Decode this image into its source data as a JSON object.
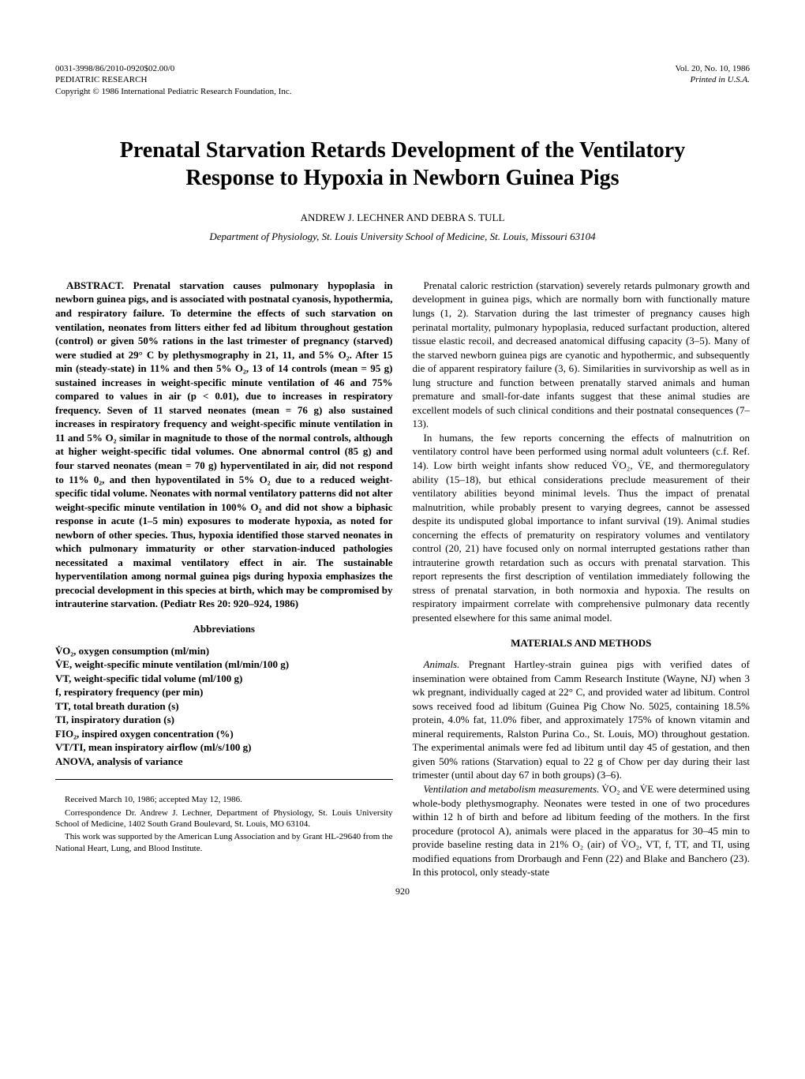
{
  "header": {
    "left_line1": "0031-3998/86/2010-0920$02.00/0",
    "left_line2": "PEDIATRIC RESEARCH",
    "left_line3": "Copyright © 1986 International Pediatric Research Foundation, Inc.",
    "right_line1": "Vol. 20, No. 10, 1986",
    "right_line2": "Printed in U.S.A."
  },
  "title": "Prenatal Starvation Retards Development of the Ventilatory Response to Hypoxia in Newborn Guinea Pigs",
  "authors": "ANDREW J. LECHNER AND DEBRA S. TULL",
  "affiliation": "Department of Physiology, St. Louis University School of Medicine, St. Louis, Missouri 63104",
  "abstract_label": "ABSTRACT.",
  "abstract_body": " Prenatal starvation causes pulmonary hypoplasia in newborn guinea pigs, and is associated with postnatal cyanosis, hypothermia, and respiratory failure. To determine the effects of such starvation on ventilation, neonates from litters either fed ad libitum throughout gestation (control) or given 50% rations in the last trimester of pregnancy (starved) were studied at 29° C by plethysmography in 21, 11, and 5% O₂. After 15 min (steady-state) in 11% and then 5% O₂, 13 of 14 controls (mean = 95 g) sustained increases in weight-specific minute ventilation of 46 and 75% compared to values in air (p < 0.01), due to increases in respiratory frequency. Seven of 11 starved neonates (mean = 76 g) also sustained increases in respiratory frequency and weight-specific minute ventilation in 11 and 5% O₂ similar in magnitude to those of the normal controls, although at higher weight-specific tidal volumes. One abnormal control (85 g) and four starved neonates (mean = 70 g) hyperventilated in air, did not respond to 11% 0₂, and then hypoventilated in 5% O₂ due to a reduced weight-specific tidal volume. Neonates with normal ventilatory patterns did not alter weight-specific minute ventilation in 100% O₂ and did not show a biphasic response in acute (1–5 min) exposures to moderate hypoxia, as noted for newborn of other species. Thus, hypoxia identified those starved neonates in which pulmonary immaturity or other starvation-induced pathologies necessitated a maximal ventilatory effect in air. The sustainable hyperventilation among normal guinea pigs during hypoxia emphasizes the precocial development in this species at birth, which may be compromised by intrauterine starvation. (Pediatr Res 20: 920–924, 1986)",
  "abbrev_heading": "Abbreviations",
  "abbreviations": [
    "V̇O₂, oxygen consumption (ml/min)",
    "V̇E, weight-specific minute ventilation (ml/min/100 g)",
    "VT, weight-specific tidal volume (ml/100 g)",
    "f, respiratory frequency (per min)",
    "TT, total breath duration (s)",
    "TI, inspiratory duration (s)",
    "FIO₂, inspired oxygen concentration (%)",
    "VT/TI, mean inspiratory airflow (ml/s/100 g)",
    "ANOVA, analysis of variance"
  ],
  "footnotes": [
    "Received March 10, 1986; accepted May 12, 1986.",
    "Correspondence Dr. Andrew J. Lechner, Department of Physiology, St. Louis University School of Medicine, 1402 South Grand Boulevard, St. Louis, MO 63104.",
    "This work was supported by the American Lung Association and by Grant HL-29640 from the National Heart, Lung, and Blood Institute."
  ],
  "intro_para1": "Prenatal caloric restriction (starvation) severely retards pulmonary growth and development in guinea pigs, which are normally born with functionally mature lungs (1, 2). Starvation during the last trimester of pregnancy causes high perinatal mortality, pulmonary hypoplasia, reduced surfactant production, altered tissue elastic recoil, and decreased anatomical diffusing capacity (3–5). Many of the starved newborn guinea pigs are cyanotic and hypothermic, and subsequently die of apparent respiratory failure (3, 6). Similarities in survivorship as well as in lung structure and function between prenatally starved animals and human premature and small-for-date infants suggest that these animal studies are excellent models of such clinical conditions and their postnatal consequences (7–13).",
  "intro_para2": "In humans, the few reports concerning the effects of malnutrition on ventilatory control have been performed using normal adult volunteers (c.f. Ref. 14). Low birth weight infants show reduced V̇O₂, V̇E, and thermoregulatory ability (15–18), but ethical considerations preclude measurement of their ventilatory abilities beyond minimal levels. Thus the impact of prenatal malnutrition, while probably present to varying degrees, cannot be assessed despite its undisputed global importance to infant survival (19). Animal studies concerning the effects of prematurity on respiratory volumes and ventilatory control (20, 21) have focused only on normal interrupted gestations rather than intrauterine growth retardation such as occurs with prenatal starvation. This report represents the first description of ventilation immediately following the stress of prenatal starvation, in both normoxia and hypoxia. The results on respiratory impairment correlate with comprehensive pulmonary data recently presented elsewhere for this same animal model.",
  "methods_heading": "MATERIALS AND METHODS",
  "methods_para1_lead": "Animals.",
  "methods_para1": " Pregnant Hartley-strain guinea pigs with verified dates of insemination were obtained from Camm Research Institute (Wayne, NJ) when 3 wk pregnant, individually caged at 22° C, and provided water ad libitum. Control sows received food ad libitum (Guinea Pig Chow No. 5025, containing 18.5% protein, 4.0% fat, 11.0% fiber, and approximately 175% of known vitamin and mineral requirements, Ralston Purina Co., St. Louis, MO) throughout gestation. The experimental animals were fed ad libitum until day 45 of gestation, and then given 50% rations (Starvation) equal to 22 g of Chow per day during their last trimester (until about day 67 in both groups) (3–6).",
  "methods_para2_lead": "Ventilation and metabolism measurements.",
  "methods_para2": " V̇O₂ and V̇E were determined using whole-body plethysmography. Neonates were tested in one of two procedures within 12 h of birth and before ad libitum feeding of the mothers. In the first procedure (protocol A), animals were placed in the apparatus for 30–45 min to provide baseline resting data in 21% O₂ (air) of V̇O₂, VT, f, TT, and TI, using modified equations from Drorbaugh and Fenn (22) and Blake and Banchero (23). In this protocol, only steady-state",
  "page_number": "920"
}
